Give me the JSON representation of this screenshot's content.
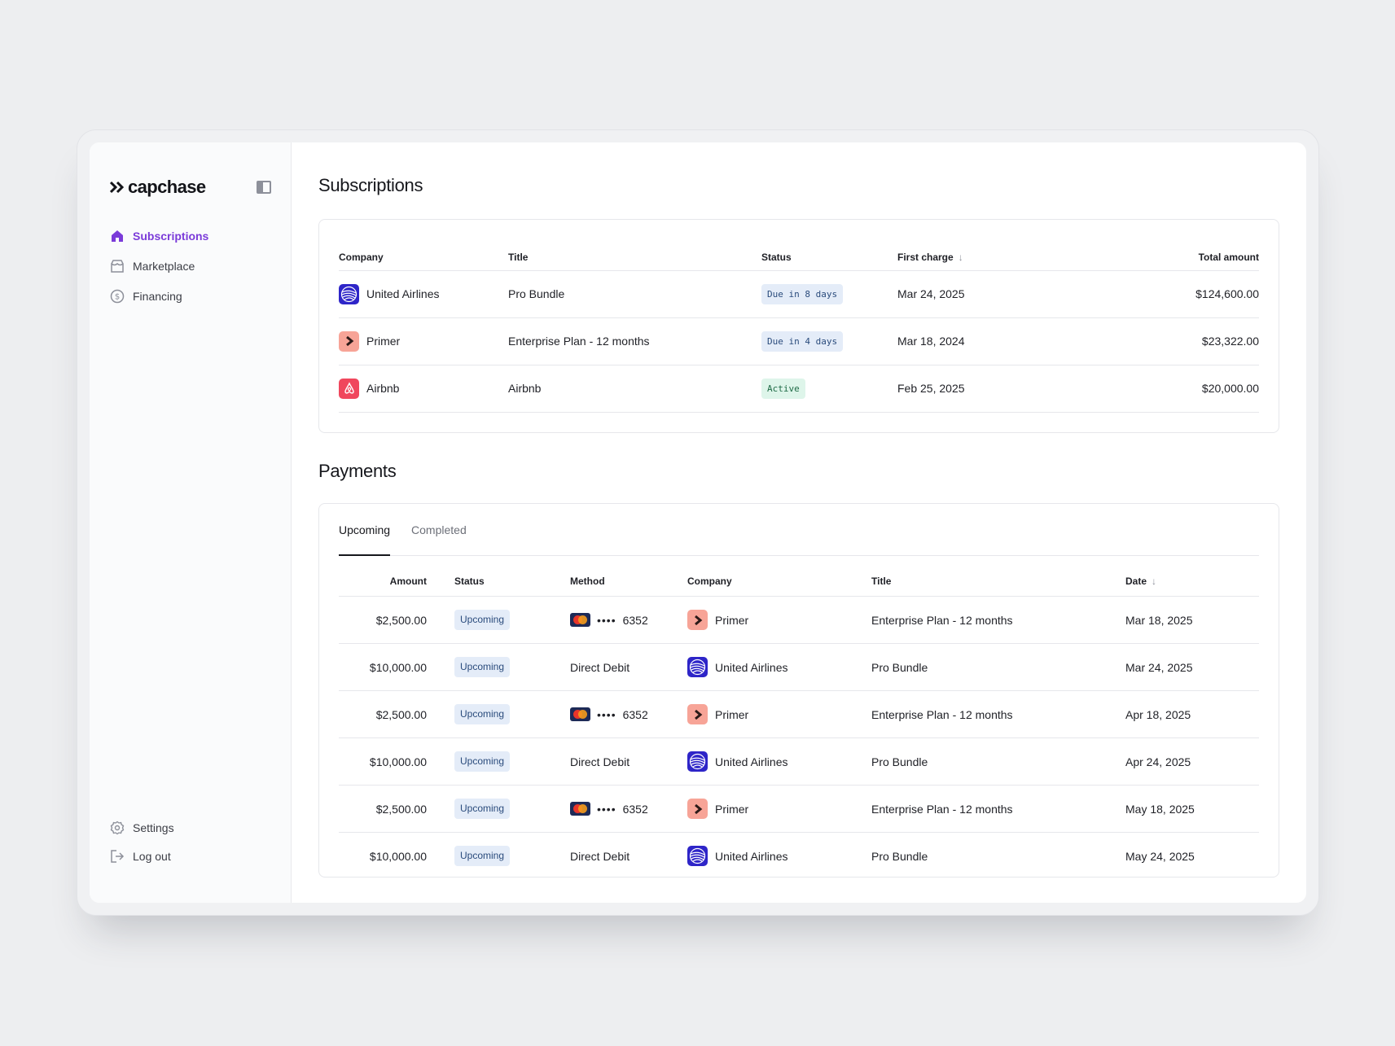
{
  "app": {
    "brand": "capchase"
  },
  "colors": {
    "accent": "#7b3bd9",
    "badge_due_bg": "#e4ecf8",
    "badge_active_bg": "#def5ea",
    "united_airlines": "#2e25c8",
    "primer": "#f7a497",
    "airbnb": "#f0475d"
  },
  "sidebar": {
    "items": [
      {
        "label": "Subscriptions",
        "icon": "home-icon",
        "active": true
      },
      {
        "label": "Marketplace",
        "icon": "store-icon",
        "active": false
      },
      {
        "label": "Financing",
        "icon": "dollar-circle-icon",
        "active": false
      }
    ],
    "bottom": [
      {
        "label": "Settings",
        "icon": "gear-icon"
      },
      {
        "label": "Log out",
        "icon": "logout-icon"
      }
    ]
  },
  "subscriptions": {
    "title": "Subscriptions",
    "columns": {
      "company": "Company",
      "title": "Title",
      "status": "Status",
      "first_charge": "First charge",
      "total_amount": "Total amount"
    },
    "rows": [
      {
        "company": "United Airlines",
        "logo": "united-airlines-logo",
        "title": "Pro Bundle",
        "status": "Due in 8 days",
        "status_type": "due",
        "first_charge": "Mar 24, 2025",
        "total_amount": "$124,600.00"
      },
      {
        "company": "Primer",
        "logo": "primer-logo",
        "title": "Enterprise Plan - 12 months",
        "status": "Due in 4 days",
        "status_type": "due",
        "first_charge": "Mar 18, 2024",
        "total_amount": "$23,322.00"
      },
      {
        "company": "Airbnb",
        "logo": "airbnb-logo",
        "title": "Airbnb",
        "status": "Active",
        "status_type": "active",
        "first_charge": "Feb 25, 2025",
        "total_amount": "$20,000.00"
      }
    ]
  },
  "payments": {
    "title": "Payments",
    "tabs": [
      {
        "label": "Upcoming",
        "active": true
      },
      {
        "label": "Completed",
        "active": false
      }
    ],
    "columns": {
      "amount": "Amount",
      "status": "Status",
      "method": "Method",
      "company": "Company",
      "title": "Title",
      "date": "Date"
    },
    "rows": [
      {
        "amount": "$2,500.00",
        "status": "Upcoming",
        "method_type": "card",
        "method_dots": "••••",
        "method_last4": "6352",
        "company": "Primer",
        "title": "Enterprise Plan - 12 months",
        "date": "Mar 18, 2025"
      },
      {
        "amount": "$10,000.00",
        "status": "Upcoming",
        "method_type": "debit",
        "method_label": "Direct Debit",
        "company": "United Airlines",
        "title": "Pro Bundle",
        "date": "Mar 24, 2025"
      },
      {
        "amount": "$2,500.00",
        "status": "Upcoming",
        "method_type": "card",
        "method_dots": "••••",
        "method_last4": "6352",
        "company": "Primer",
        "title": "Enterprise Plan - 12 months",
        "date": "Apr 18, 2025"
      },
      {
        "amount": "$10,000.00",
        "status": "Upcoming",
        "method_type": "debit",
        "method_label": "Direct Debit",
        "company": "United Airlines",
        "title": "Pro Bundle",
        "date": "Apr 24, 2025"
      },
      {
        "amount": "$2,500.00",
        "status": "Upcoming",
        "method_type": "card",
        "method_dots": "••••",
        "method_last4": "6352",
        "company": "Primer",
        "title": "Enterprise Plan - 12 months",
        "date": "May 18, 2025"
      },
      {
        "amount": "$10,000.00",
        "status": "Upcoming",
        "method_type": "debit",
        "method_label": "Direct Debit",
        "company": "United Airlines",
        "title": "Pro Bundle",
        "date": "May 24, 2025"
      }
    ]
  }
}
